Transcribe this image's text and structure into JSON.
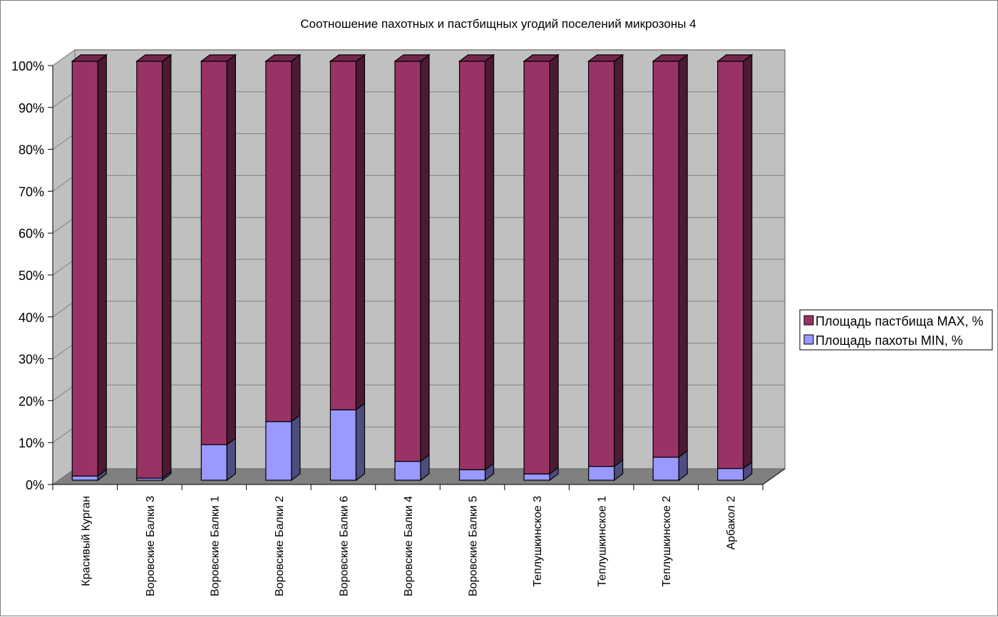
{
  "chart_data": {
    "type": "bar",
    "stacked": "percent",
    "three_d": true,
    "title": "Соотношение пахотных и пастбищных угодий поселений микрозоны 4",
    "xlabel": "",
    "ylabel": "",
    "ylim": [
      0,
      100
    ],
    "y_ticks": [
      "0%",
      "10%",
      "20%",
      "30%",
      "40%",
      "50%",
      "60%",
      "70%",
      "80%",
      "90%",
      "100%"
    ],
    "grid": true,
    "legend_position": "right",
    "categories": [
      "Красивый Курган",
      "Воровские Балки 3",
      "Воровские Балки 1",
      "Воровские Балки 2",
      "Воровские Балки 6",
      "Воровские Балки 4",
      "Воровские Балки 5",
      "Теплушкинское 3",
      "Теплушкинское 1",
      "Теплушкинское 2",
      "Арбакол 2"
    ],
    "series": [
      {
        "name": "Площадь пахоты MIN, %",
        "color": "#9999ff",
        "values": [
          1.0,
          0.5,
          8.5,
          14.0,
          16.8,
          4.5,
          2.5,
          1.5,
          3.3,
          5.5,
          2.8
        ]
      },
      {
        "name": "Площадь пастбища MAX, %",
        "color": "#993366",
        "values": [
          99.0,
          99.5,
          91.5,
          86.0,
          83.2,
          95.5,
          97.5,
          98.5,
          96.7,
          94.5,
          97.2
        ]
      }
    ],
    "legend_order": [
      "Площадь пастбища MAX, %",
      "Площадь пахоты MIN, %"
    ],
    "colors": {
      "wall": "#c0c0c0",
      "floor": "#808080",
      "grid": "#808080"
    }
  }
}
